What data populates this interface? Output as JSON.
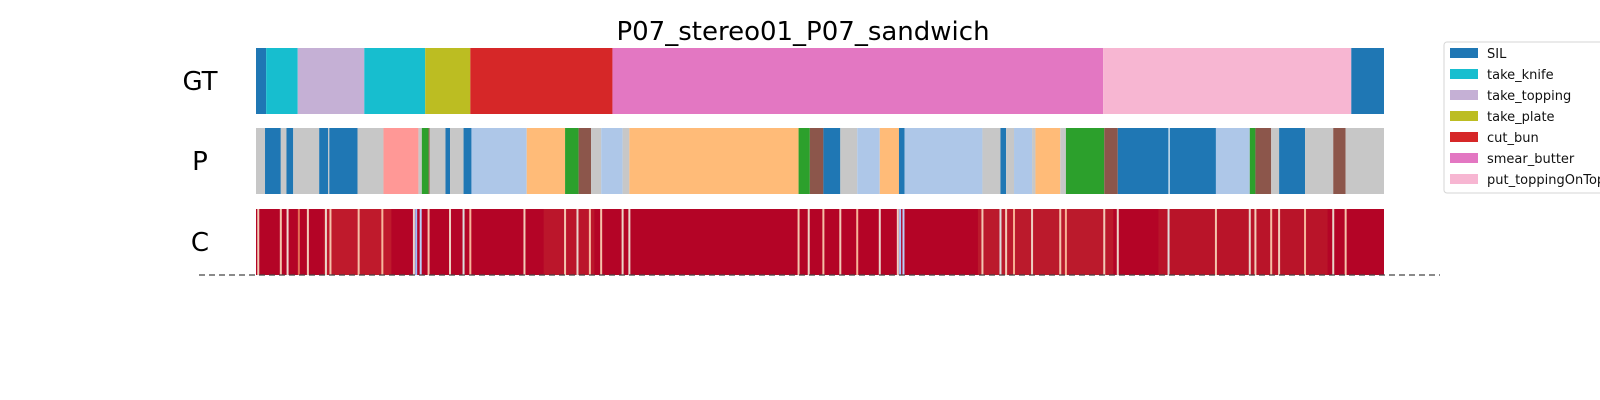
{
  "chart_data": {
    "type": "segmentation-timeline",
    "title": "P07_stereo01_P07_sandwich",
    "x_range": [
      0,
      1000
    ],
    "rows": [
      {
        "label": "GT",
        "segments": [
          {
            "start": 0,
            "end": 9,
            "class": "SIL"
          },
          {
            "start": 9,
            "end": 37,
            "class": "take_knife"
          },
          {
            "start": 37,
            "end": 96,
            "class": "take_topping"
          },
          {
            "start": 96,
            "end": 150,
            "class": "take_knife"
          },
          {
            "start": 150,
            "end": 190,
            "class": "take_plate"
          },
          {
            "start": 190,
            "end": 316,
            "class": "cut_bun"
          },
          {
            "start": 316,
            "end": 751,
            "class": "smear_butter"
          },
          {
            "start": 751,
            "end": 971,
            "class": "put_toppingOnTop"
          },
          {
            "start": 971,
            "end": 1000,
            "class": "SIL"
          }
        ]
      },
      {
        "label": "P",
        "segments": [
          {
            "start": 0,
            "end": 8,
            "color": "#c7c7c7"
          },
          {
            "start": 8,
            "end": 22,
            "color": "#1f77b4"
          },
          {
            "start": 22,
            "end": 27,
            "color": "#c7c7c7"
          },
          {
            "start": 27,
            "end": 33,
            "color": "#1f77b4"
          },
          {
            "start": 33,
            "end": 56,
            "color": "#c7c7c7"
          },
          {
            "start": 56,
            "end": 64,
            "color": "#1f77b4"
          },
          {
            "start": 64,
            "end": 65,
            "color": "#c7c7c7"
          },
          {
            "start": 65,
            "end": 90,
            "color": "#1f77b4"
          },
          {
            "start": 90,
            "end": 113,
            "color": "#c7c7c7"
          },
          {
            "start": 113,
            "end": 144,
            "color": "#ff9896"
          },
          {
            "start": 144,
            "end": 147,
            "color": "#c7c7c7"
          },
          {
            "start": 147,
            "end": 153,
            "color": "#2ca02c"
          },
          {
            "start": 153,
            "end": 154,
            "color": "#8c564b"
          },
          {
            "start": 154,
            "end": 168,
            "color": "#c7c7c7"
          },
          {
            "start": 168,
            "end": 172,
            "color": "#1f77b4"
          },
          {
            "start": 172,
            "end": 184,
            "color": "#c7c7c7"
          },
          {
            "start": 184,
            "end": 191,
            "color": "#1f77b4"
          },
          {
            "start": 191,
            "end": 240,
            "color": "#aec7e8"
          },
          {
            "start": 240,
            "end": 274,
            "color": "#ffbb78"
          },
          {
            "start": 274,
            "end": 286,
            "color": "#2ca02c"
          },
          {
            "start": 286,
            "end": 297,
            "color": "#8c564b"
          },
          {
            "start": 297,
            "end": 306,
            "color": "#c7c7c7"
          },
          {
            "start": 306,
            "end": 325,
            "color": "#aec7e8"
          },
          {
            "start": 325,
            "end": 331,
            "color": "#c7c7c7"
          },
          {
            "start": 331,
            "end": 481,
            "color": "#ffbb78"
          },
          {
            "start": 481,
            "end": 491,
            "color": "#2ca02c"
          },
          {
            "start": 491,
            "end": 503,
            "color": "#8c564b"
          },
          {
            "start": 503,
            "end": 518,
            "color": "#1f77b4"
          },
          {
            "start": 518,
            "end": 533,
            "color": "#c7c7c7"
          },
          {
            "start": 533,
            "end": 553,
            "color": "#aec7e8"
          },
          {
            "start": 553,
            "end": 570,
            "color": "#ffbb78"
          },
          {
            "start": 570,
            "end": 575,
            "color": "#1f77b4"
          },
          {
            "start": 575,
            "end": 644,
            "color": "#aec7e8"
          },
          {
            "start": 644,
            "end": 660,
            "color": "#c7c7c7"
          },
          {
            "start": 660,
            "end": 665,
            "color": "#1f77b4"
          },
          {
            "start": 665,
            "end": 672,
            "color": "#c7c7c7"
          },
          {
            "start": 672,
            "end": 688,
            "color": "#aec7e8"
          },
          {
            "start": 688,
            "end": 691,
            "color": "#c7c7c7"
          },
          {
            "start": 691,
            "end": 713,
            "color": "#ffbb78"
          },
          {
            "start": 713,
            "end": 718,
            "color": "#c7c7c7"
          },
          {
            "start": 718,
            "end": 752,
            "color": "#2ca02c"
          },
          {
            "start": 752,
            "end": 764,
            "color": "#8c564b"
          },
          {
            "start": 764,
            "end": 809,
            "color": "#1f77b4"
          },
          {
            "start": 809,
            "end": 810,
            "color": "#ffffff"
          },
          {
            "start": 810,
            "end": 851,
            "color": "#1f77b4"
          },
          {
            "start": 851,
            "end": 881,
            "color": "#aec7e8"
          },
          {
            "start": 881,
            "end": 886,
            "color": "#2ca02c"
          },
          {
            "start": 886,
            "end": 900,
            "color": "#8c564b"
          },
          {
            "start": 900,
            "end": 907,
            "color": "#c7c7c7"
          },
          {
            "start": 907,
            "end": 930,
            "color": "#1f77b4"
          },
          {
            "start": 930,
            "end": 955,
            "color": "#c7c7c7"
          },
          {
            "start": 955,
            "end": 966,
            "color": "#8c564b"
          },
          {
            "start": 966,
            "end": 1000,
            "color": "#c7c7c7"
          }
        ]
      },
      {
        "label": "C",
        "base_color": "#b40426",
        "stripes": [
          {
            "at": 2,
            "color": "#f2cbb7"
          },
          {
            "at": 22,
            "color": "#f4c5ad"
          },
          {
            "at": 28,
            "color": "#eddbd0"
          },
          {
            "at": 38,
            "color": "#e46e56"
          },
          {
            "at": 46,
            "color": "#f1ccb8"
          },
          {
            "at": 62,
            "color": "#ead5c9"
          },
          {
            "at": 66,
            "color": "#f5c2aa"
          },
          {
            "at": 91,
            "color": "#f6bfa6"
          },
          {
            "at": 112,
            "color": "#f7b89c"
          },
          {
            "at": 140,
            "color": "#e9d5cb"
          },
          {
            "at": 142,
            "color": "#9ebeff"
          },
          {
            "at": 146,
            "color": "#b9d0f9"
          },
          {
            "at": 153,
            "color": "#f5c1a9"
          },
          {
            "at": 172,
            "color": "#eed0c0"
          },
          {
            "at": 184,
            "color": "#dddcdc"
          },
          {
            "at": 190,
            "color": "#f7b599"
          },
          {
            "at": 238,
            "color": "#f2cbb7"
          },
          {
            "at": 274,
            "color": "#f4c6af"
          },
          {
            "at": 285,
            "color": "#e9d5cb"
          },
          {
            "at": 296,
            "color": "#f7b99e"
          },
          {
            "at": 306,
            "color": "#f5c2aa"
          },
          {
            "at": 325,
            "color": "#ecd3c5"
          },
          {
            "at": 331,
            "color": "#e8d6cc"
          },
          {
            "at": 481,
            "color": "#f4c5ad"
          },
          {
            "at": 490,
            "color": "#edd2c3"
          },
          {
            "at": 503,
            "color": "#f6bea4"
          },
          {
            "at": 518,
            "color": "#f2cab5"
          },
          {
            "at": 533,
            "color": "#f7b497"
          },
          {
            "at": 553,
            "color": "#e9d5cb"
          },
          {
            "at": 569,
            "color": "#ecd3c5"
          },
          {
            "at": 571,
            "color": "#a7c5fe"
          },
          {
            "at": 574,
            "color": "#b9d0f9"
          },
          {
            "at": 644,
            "color": "#f3c7b1"
          },
          {
            "at": 660,
            "color": "#dddcdc"
          },
          {
            "at": 665,
            "color": "#f2cbb7"
          },
          {
            "at": 672,
            "color": "#f7b093"
          },
          {
            "at": 688,
            "color": "#edd1c2"
          },
          {
            "at": 713,
            "color": "#f5c4ac"
          },
          {
            "at": 718,
            "color": "#f7b194"
          },
          {
            "at": 752,
            "color": "#f2cbb7"
          },
          {
            "at": 764,
            "color": "#ecd3c5"
          },
          {
            "at": 809,
            "color": "#dfdbd9"
          },
          {
            "at": 851,
            "color": "#f4c5ad"
          },
          {
            "at": 881,
            "color": "#e8d6cc"
          },
          {
            "at": 886,
            "color": "#f2cbb7"
          },
          {
            "at": 900,
            "color": "#f6bea4"
          },
          {
            "at": 907,
            "color": "#f1ccb8"
          },
          {
            "at": 930,
            "color": "#f7b89c"
          },
          {
            "at": 955,
            "color": "#ead4c8"
          },
          {
            "at": 966,
            "color": "#f5c1a9"
          }
        ]
      }
    ],
    "baseline_style": "dashed",
    "legend": {
      "placement": "top-right",
      "entries": [
        {
          "label": "SIL",
          "color": "#1f77b4"
        },
        {
          "label": "take_knife",
          "color": "#17becf"
        },
        {
          "label": "take_topping",
          "color": "#c5b0d5"
        },
        {
          "label": "take_plate",
          "color": "#bcbd22"
        },
        {
          "label": "cut_bun",
          "color": "#d62728"
        },
        {
          "label": "smear_butter",
          "color": "#e377c2"
        },
        {
          "label": "put_toppingOnTop",
          "color": "#f7b6d2"
        }
      ]
    }
  }
}
